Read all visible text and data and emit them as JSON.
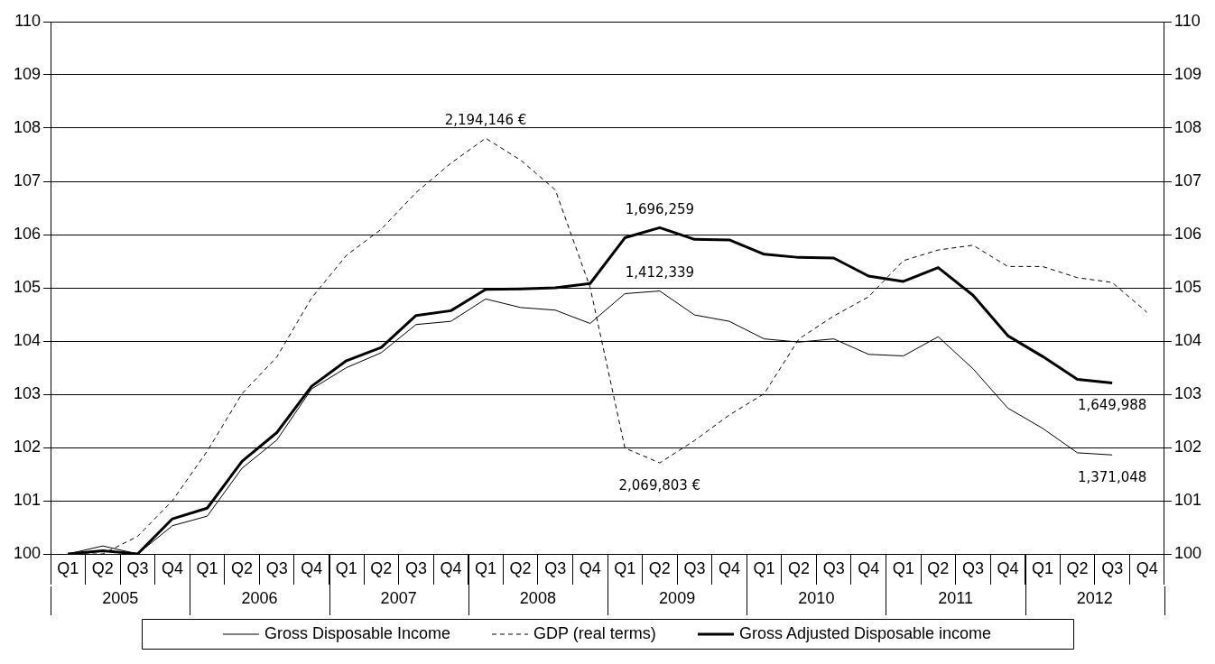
{
  "chart_data": {
    "type": "line",
    "categories": [
      "Q1",
      "Q2",
      "Q3",
      "Q4",
      "Q1",
      "Q2",
      "Q3",
      "Q4",
      "Q1",
      "Q2",
      "Q3",
      "Q4",
      "Q1",
      "Q2",
      "Q3",
      "Q4",
      "Q1",
      "Q2",
      "Q3",
      "Q4",
      "Q1",
      "Q2",
      "Q3",
      "Q4",
      "Q1",
      "Q2",
      "Q3",
      "Q4",
      "Q1",
      "Q2",
      "Q3",
      "Q4"
    ],
    "series": [
      {
        "name": "Gross Disposable Income",
        "color": "#000000",
        "line_style": "solid",
        "values": [
          100,
          100.15,
          100.0,
          100.53,
          100.71,
          101.61,
          102.14,
          103.1,
          103.5,
          103.78,
          104.31,
          104.37,
          104.79,
          104.63,
          104.58,
          104.33,
          104.89,
          104.94,
          104.49,
          104.37,
          104.04,
          103.98,
          104.04,
          103.75,
          103.72,
          104.08,
          103.48,
          102.74,
          102.36,
          101.9,
          101.86,
          null
        ]
      },
      {
        "name": "GDP (real terms)",
        "color": "#000000",
        "line_style": "dashed",
        "values": [
          100,
          100,
          100.33,
          101.0,
          101.93,
          103.01,
          103.7,
          104.81,
          105.61,
          106.1,
          106.79,
          107.34,
          107.81,
          107.4,
          106.84,
          105.01,
          101.99,
          101.71,
          102.13,
          102.61,
          103.01,
          104.04,
          104.47,
          104.83,
          105.51,
          105.71,
          105.8,
          105.4,
          105.4,
          105.19,
          105.1,
          104.54
        ]
      },
      {
        "name": "Gross Adjusted Disposable income",
        "color": "#000000",
        "line_style": "solid",
        "values": [
          100,
          100.06,
          100.0,
          100.66,
          100.86,
          101.74,
          102.28,
          103.15,
          103.63,
          103.88,
          104.48,
          104.57,
          104.97,
          104.98,
          105.0,
          105.08,
          105.94,
          106.13,
          105.91,
          105.9,
          105.63,
          105.57,
          105.56,
          105.22,
          105.12,
          105.38,
          104.86,
          104.1,
          103.71,
          103.28,
          103.21,
          null
        ]
      }
    ],
    "annotations": [
      "2005",
      "2006",
      "2007",
      "2008",
      "2009",
      "2010",
      "2011",
      "2012",
      "1,412,339",
      "1,371,048",
      "2,194,146 €",
      "2,069,803 €",
      "1,696,259",
      "1,649,988"
    ],
    "ylim": [
      100,
      110
    ],
    "yticks": [
      100,
      101,
      102,
      103,
      104,
      105,
      106,
      107,
      108,
      109,
      110
    ],
    "y2lim": [
      100,
      110
    ],
    "y2ticks": [
      100,
      101,
      102,
      103,
      104,
      105,
      106,
      107,
      108,
      109,
      110
    ],
    "grid": "y",
    "legend": "bottom",
    "marker": "none"
  }
}
